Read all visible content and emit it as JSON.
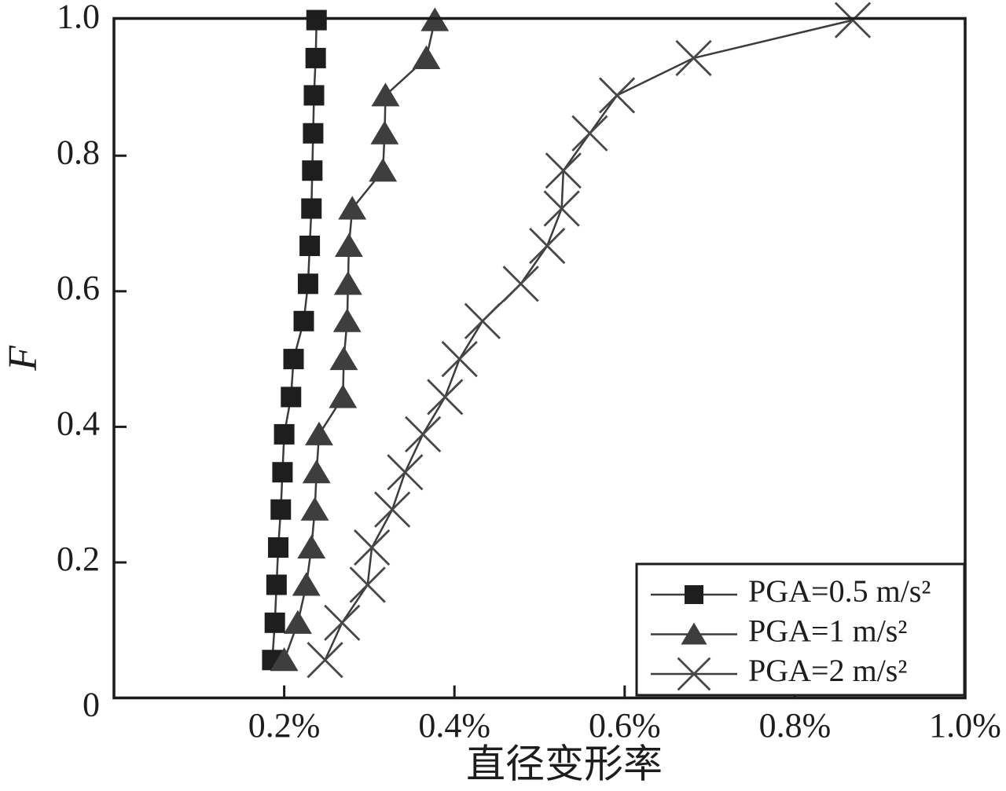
{
  "figure": {
    "background": "#ffffff",
    "axis_color": "#1d1d1d",
    "line_color": "#3c3c3c",
    "text_color": "#1d1d1d"
  },
  "chart_data": {
    "type": "line",
    "title": "",
    "xlabel": "直径变形率",
    "ylabel": "F",
    "x_unit": "%",
    "xlim_percent": [
      0,
      1.0
    ],
    "ylim": [
      0,
      1.0
    ],
    "grid": false,
    "legend_position": "bottom-right",
    "x_ticks": [
      {
        "value": 0.2,
        "label": "0.2%"
      },
      {
        "value": 0.4,
        "label": "0.4%"
      },
      {
        "value": 0.6,
        "label": "0.6%"
      },
      {
        "value": 0.8,
        "label": "0.8%"
      },
      {
        "value": 1.0,
        "label": "1.0%"
      }
    ],
    "y_ticks": [
      {
        "value": 0,
        "label": "0"
      },
      {
        "value": 0.2,
        "label": "0.2"
      },
      {
        "value": 0.4,
        "label": "0.4"
      },
      {
        "value": 0.6,
        "label": "0.6"
      },
      {
        "value": 0.8,
        "label": "0.8"
      },
      {
        "value": 1.0,
        "label": "1.0"
      }
    ],
    "F_values": [
      0.056,
      0.111,
      0.167,
      0.222,
      0.278,
      0.333,
      0.389,
      0.444,
      0.5,
      0.556,
      0.611,
      0.667,
      0.722,
      0.778,
      0.833,
      0.889,
      0.944,
      1.0
    ],
    "series": [
      {
        "name": "PGA=0.5 m/s²",
        "marker": "square",
        "marker_color": "#1e1e1e",
        "x_percent": [
          0.186,
          0.189,
          0.191,
          0.193,
          0.196,
          0.198,
          0.2,
          0.208,
          0.211,
          0.223,
          0.228,
          0.23,
          0.232,
          0.233,
          0.234,
          0.235,
          0.237,
          0.238
        ]
      },
      {
        "name": "PGA=1 m/s²",
        "marker": "triangle",
        "marker_color": "#3e3e3e",
        "x_percent": [
          0.2,
          0.216,
          0.226,
          0.232,
          0.236,
          0.238,
          0.241,
          0.269,
          0.27,
          0.274,
          0.275,
          0.276,
          0.28,
          0.316,
          0.318,
          0.319,
          0.367,
          0.377
        ]
      },
      {
        "name": "PGA=2 m/s²",
        "marker": "x",
        "marker_color": "#474747",
        "x_percent": [
          0.248,
          0.268,
          0.298,
          0.303,
          0.327,
          0.342,
          0.363,
          0.389,
          0.406,
          0.433,
          0.478,
          0.509,
          0.526,
          0.528,
          0.559,
          0.591,
          0.681,
          0.868
        ]
      }
    ]
  }
}
